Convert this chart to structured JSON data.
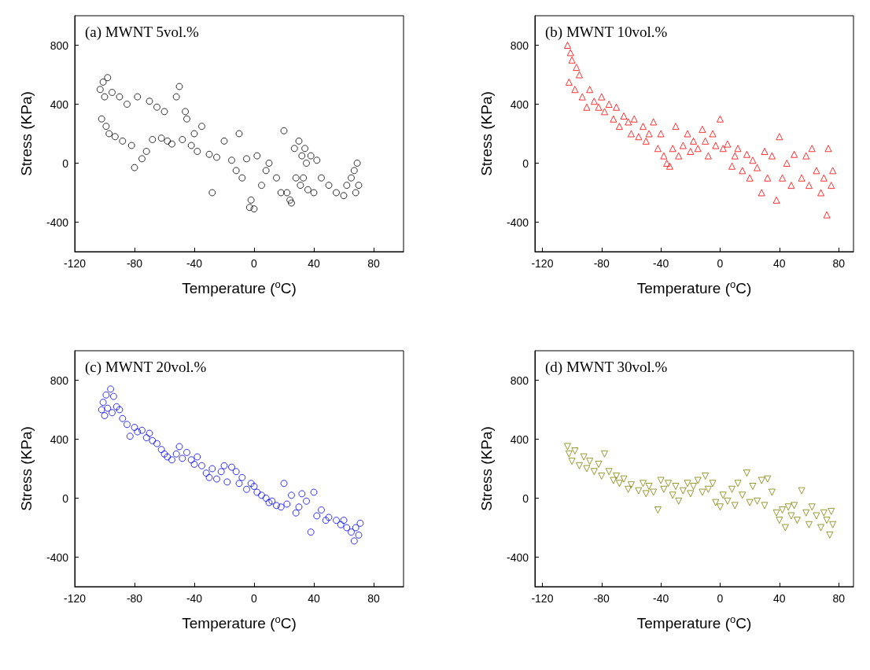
{
  "chart_data": [
    {
      "type": "scatter",
      "title": "(a) MWNT 5vol.%",
      "xlabel": "Temperature ($^{o}$C)",
      "ylabel": "Stress (KPa)",
      "color": "#000000",
      "marker": "circle",
      "xlim": [
        -120,
        100
      ],
      "xticks": [
        -120,
        -80,
        -40,
        0,
        40,
        80
      ],
      "ylim": [
        -600,
        1000
      ],
      "yticks": [
        -400,
        0,
        400,
        800
      ],
      "x": [
        -103,
        -102,
        -101,
        -100,
        -99,
        -98,
        -97,
        -95,
        -93,
        -90,
        -88,
        -85,
        -82,
        -80,
        -78,
        -75,
        -72,
        -70,
        -68,
        -65,
        -62,
        -60,
        -58,
        -55,
        -52,
        -50,
        -48,
        -46,
        -45,
        -42,
        -40,
        -38,
        -35,
        -30,
        -28,
        -25,
        -20,
        -15,
        -12,
        -10,
        -8,
        -5,
        -3,
        -2,
        0,
        2,
        5,
        8,
        10,
        15,
        18,
        20,
        22,
        24,
        25,
        27,
        28,
        30,
        31,
        32,
        33,
        34,
        35,
        36,
        38,
        40,
        42,
        45,
        50,
        55,
        60,
        62,
        65,
        67,
        68,
        69,
        70
      ],
      "values": [
        500,
        300,
        550,
        450,
        250,
        580,
        200,
        480,
        180,
        450,
        150,
        400,
        120,
        -30,
        450,
        30,
        80,
        420,
        160,
        380,
        170,
        350,
        150,
        130,
        450,
        520,
        160,
        350,
        300,
        120,
        200,
        80,
        250,
        60,
        -200,
        40,
        150,
        20,
        -50,
        200,
        -100,
        30,
        -300,
        -250,
        -310,
        50,
        -150,
        -50,
        0,
        -100,
        -200,
        220,
        -200,
        -250,
        -270,
        100,
        -100,
        150,
        -150,
        50,
        -100,
        100,
        0,
        -180,
        50,
        -200,
        20,
        -100,
        -150,
        -200,
        -220,
        -150,
        -100,
        -50,
        -200,
        0,
        -150
      ]
    },
    {
      "type": "scatter",
      "title": "(b) MWNT 10vol.%",
      "xlabel": "Temperature ($^{o}$C)",
      "ylabel": "Stress (KPa)",
      "color": "#ff0000",
      "marker": "triangle",
      "xlim": [
        -125,
        90
      ],
      "xticks": [
        -120,
        -80,
        -40,
        0,
        40,
        80
      ],
      "ylim": [
        -600,
        1000
      ],
      "yticks": [
        -400,
        0,
        400,
        800
      ],
      "x": [
        -103,
        -102,
        -101,
        -100,
        -98,
        -97,
        -95,
        -93,
        -90,
        -88,
        -85,
        -82,
        -80,
        -78,
        -75,
        -72,
        -70,
        -68,
        -65,
        -62,
        -60,
        -58,
        -55,
        -52,
        -50,
        -48,
        -45,
        -42,
        -40,
        -38,
        -36,
        -34,
        -32,
        -30,
        -28,
        -25,
        -22,
        -20,
        -18,
        -15,
        -12,
        -10,
        -8,
        -5,
        -3,
        0,
        2,
        5,
        8,
        10,
        12,
        15,
        18,
        20,
        22,
        25,
        28,
        30,
        32,
        35,
        38,
        40,
        42,
        45,
        48,
        50,
        55,
        58,
        60,
        62,
        65,
        68,
        70,
        72,
        73,
        75,
        76
      ],
      "values": [
        800,
        550,
        750,
        700,
        500,
        650,
        600,
        450,
        380,
        500,
        420,
        380,
        450,
        350,
        400,
        300,
        380,
        250,
        320,
        280,
        200,
        300,
        180,
        250,
        150,
        200,
        280,
        100,
        200,
        50,
        0,
        -20,
        100,
        250,
        50,
        120,
        200,
        80,
        150,
        100,
        230,
        150,
        50,
        200,
        120,
        300,
        100,
        130,
        -20,
        50,
        100,
        -50,
        60,
        -100,
        20,
        -30,
        -200,
        80,
        -100,
        50,
        -250,
        180,
        -100,
        0,
        -150,
        60,
        -100,
        50,
        -150,
        100,
        -50,
        -200,
        -100,
        -350,
        100,
        -150,
        -50
      ]
    },
    {
      "type": "scatter",
      "title": "(c) MWNT 20vol.%",
      "xlabel": "Temperature ($^{o}$C)",
      "ylabel": "Stress (KPa)",
      "color": "#0000ff",
      "marker": "circle",
      "xlim": [
        -120,
        100
      ],
      "xticks": [
        -120,
        -80,
        -40,
        0,
        40,
        80
      ],
      "ylim": [
        -600,
        1000
      ],
      "yticks": [
        -400,
        0,
        400,
        800
      ],
      "x": [
        -102,
        -101,
        -100,
        -99,
        -98,
        -96,
        -95,
        -94,
        -92,
        -90,
        -88,
        -85,
        -83,
        -80,
        -78,
        -75,
        -72,
        -70,
        -68,
        -65,
        -62,
        -60,
        -58,
        -55,
        -52,
        -50,
        -48,
        -45,
        -42,
        -40,
        -38,
        -35,
        -32,
        -30,
        -28,
        -25,
        -22,
        -20,
        -18,
        -15,
        -12,
        -10,
        -8,
        -5,
        -2,
        0,
        2,
        5,
        8,
        10,
        12,
        15,
        18,
        20,
        22,
        25,
        28,
        30,
        32,
        35,
        38,
        40,
        42,
        45,
        48,
        50,
        55,
        58,
        60,
        62,
        65,
        67,
        68,
        70,
        71
      ],
      "values": [
        600,
        650,
        560,
        700,
        610,
        740,
        580,
        690,
        620,
        600,
        540,
        500,
        420,
        480,
        450,
        460,
        410,
        440,
        390,
        370,
        330,
        300,
        280,
        260,
        300,
        350,
        270,
        310,
        260,
        230,
        280,
        220,
        170,
        140,
        200,
        130,
        180,
        220,
        110,
        210,
        180,
        100,
        140,
        60,
        100,
        80,
        40,
        20,
        0,
        -30,
        -20,
        -50,
        -60,
        100,
        -40,
        20,
        -100,
        -60,
        30,
        -20,
        -230,
        40,
        -120,
        -80,
        -150,
        -130,
        -150,
        -180,
        -150,
        -200,
        -230,
        -290,
        -200,
        -250,
        -170
      ]
    },
    {
      "type": "scatter",
      "title": "(d) MWNT 30vol.%",
      "xlabel": "Temperature ($^{o}$C)",
      "ylabel": "Stress (KPa)",
      "color": "#808000",
      "marker": "triangle-down",
      "xlim": [
        -125,
        90
      ],
      "xticks": [
        -120,
        -80,
        -40,
        0,
        40,
        80
      ],
      "ylim": [
        -600,
        1000
      ],
      "yticks": [
        -400,
        0,
        400,
        800
      ],
      "x": [
        -103,
        -102,
        -100,
        -98,
        -95,
        -92,
        -90,
        -88,
        -85,
        -82,
        -80,
        -78,
        -75,
        -72,
        -70,
        -68,
        -65,
        -62,
        -60,
        -55,
        -52,
        -50,
        -48,
        -45,
        -42,
        -40,
        -38,
        -35,
        -32,
        -30,
        -28,
        -25,
        -22,
        -20,
        -18,
        -15,
        -12,
        -10,
        -8,
        -5,
        -3,
        0,
        2,
        5,
        8,
        10,
        12,
        15,
        18,
        20,
        22,
        25,
        28,
        30,
        32,
        35,
        38,
        40,
        42,
        44,
        46,
        48,
        50,
        52,
        55,
        58,
        60,
        62,
        65,
        68,
        70,
        72,
        74,
        75,
        76
      ],
      "values": [
        350,
        300,
        250,
        320,
        220,
        280,
        200,
        250,
        180,
        230,
        150,
        300,
        180,
        120,
        150,
        100,
        130,
        60,
        90,
        50,
        100,
        30,
        80,
        40,
        -80,
        120,
        60,
        100,
        20,
        80,
        -20,
        50,
        100,
        30,
        80,
        120,
        40,
        150,
        60,
        100,
        -30,
        -60,
        20,
        -20,
        60,
        -50,
        100,
        20,
        170,
        -30,
        80,
        -20,
        120,
        -50,
        130,
        40,
        -100,
        -150,
        -80,
        -200,
        -60,
        -120,
        -50,
        -150,
        50,
        -100,
        -180,
        -60,
        -120,
        -200,
        -100,
        -150,
        -250,
        -90,
        -180
      ]
    }
  ]
}
